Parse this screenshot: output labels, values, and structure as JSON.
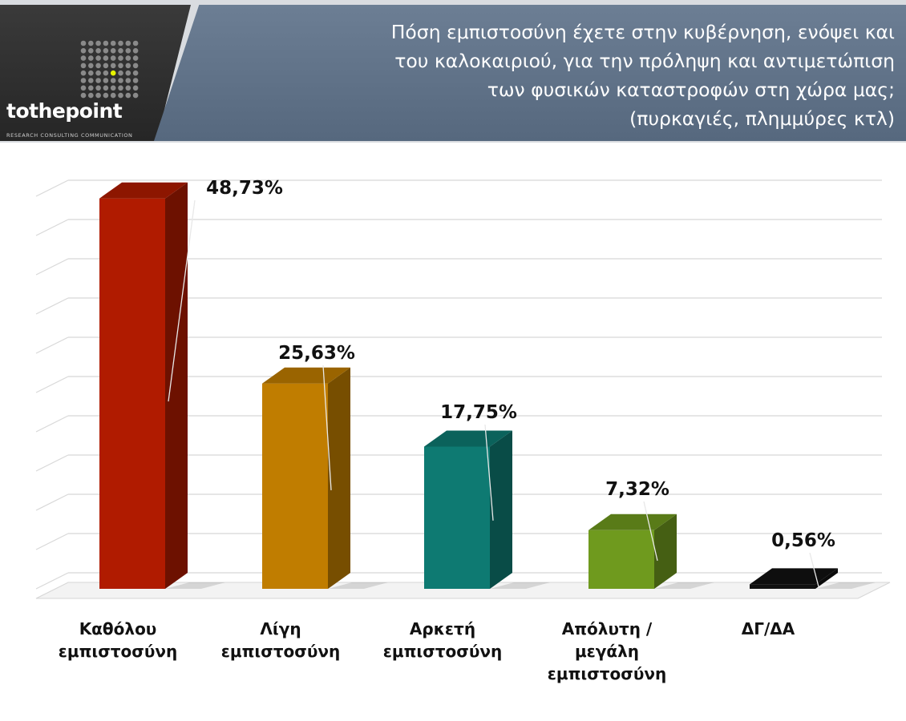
{
  "header": {
    "title": "Πόση εμπιστοσύνη έχετε στην κυβέρνηση, ενόψει και\nτου καλοκαιριού,  για την πρόληψη και αντιμετώπιση\nτων φυσικών καταστροφών στη χώρα μας;\n(πυρκαγιές, πλημμύρες κτλ)",
    "logo_text": "tothepoint",
    "logo_tagline": "RESEARCH  CONSULTING  COMMUNICATION"
  },
  "chart_data": {
    "type": "bar",
    "categories": [
      "Καθόλου\nεμπιστοσύνη",
      "Λίγη\nεμπιστοσύνη",
      "Αρκετή\nεμπιστοσύνη",
      "Απόλυτη /\nμεγάλη\nεμπιστοσύνη",
      "ΔΓ/ΔΑ"
    ],
    "values": [
      48.73,
      25.63,
      17.75,
      7.32,
      0.56
    ],
    "value_labels": [
      "48,73%",
      "25,63%",
      "17,75%",
      "7,32%",
      "0,56%"
    ],
    "colors": [
      "#b01b00",
      "#c07d00",
      "#0e7a72",
      "#6f9a1e",
      "#111111"
    ],
    "ylim": [
      0,
      50
    ],
    "grid": true,
    "legend": "none"
  }
}
